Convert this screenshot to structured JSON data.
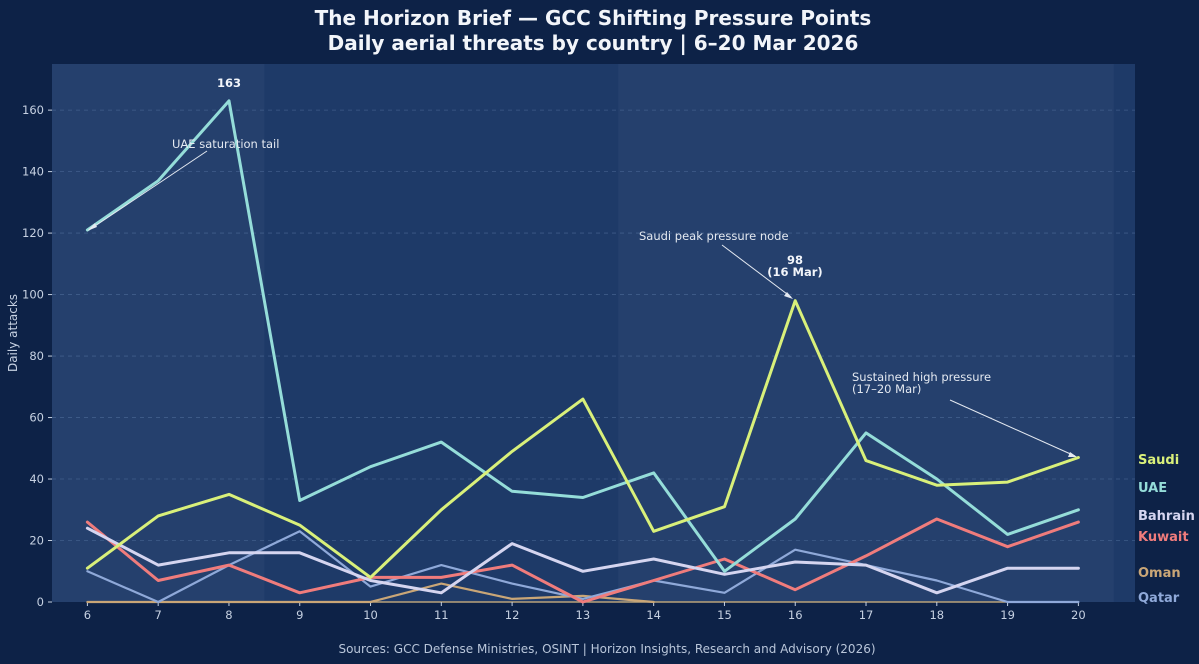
{
  "header": {
    "title_line1": "The Horizon Brief — GCC Shifting Pressure Points",
    "title_line2": "Daily aerial threats by country | 6–20 Mar 2026"
  },
  "footer": {
    "source": "Sources: GCC Defense Ministries, OSINT | Horizon Insights, Research and Advisory (2026)"
  },
  "chart_data": {
    "type": "line",
    "title": "The Horizon Brief — GCC Shifting Pressure Points",
    "subtitle": "Daily aerial threats by country | 6–20 Mar 2026",
    "xlabel": "",
    "ylabel": "Daily attacks",
    "x": [
      6,
      7,
      8,
      9,
      10,
      11,
      12,
      13,
      14,
      15,
      16,
      17,
      18,
      19,
      20
    ],
    "xlim": [
      5.5,
      20.8
    ],
    "ylim": [
      0,
      175
    ],
    "yticks": [
      0,
      20,
      40,
      60,
      80,
      100,
      120,
      140,
      160
    ],
    "grid": "horizontal-dashed",
    "legend_placement": "right",
    "shaded_bands": [
      [
        5.5,
        8.5
      ],
      [
        13.5,
        20.5
      ]
    ],
    "series": [
      {
        "name": "Saudi",
        "color": "#d9f07a",
        "values": [
          11,
          28,
          35,
          25,
          8,
          30,
          49,
          66,
          23,
          31,
          98,
          46,
          38,
          39,
          47
        ]
      },
      {
        "name": "UAE",
        "color": "#95ddd9",
        "values": [
          121,
          137,
          163,
          33,
          44,
          52,
          36,
          34,
          42,
          10,
          27,
          55,
          40,
          22,
          30
        ]
      },
      {
        "name": "Bahrain",
        "color": "#d5d5f0",
        "values": [
          24,
          12,
          16,
          16,
          7,
          3,
          19,
          10,
          14,
          9,
          13,
          12,
          3,
          11,
          11
        ]
      },
      {
        "name": "Kuwait",
        "color": "#f07c7c",
        "values": [
          26,
          7,
          12,
          3,
          8,
          8,
          12,
          0,
          7,
          14,
          4,
          15,
          27,
          18,
          26
        ]
      },
      {
        "name": "Oman",
        "color": "#c9a677",
        "values": [
          0,
          0,
          0,
          0,
          0,
          6,
          1,
          2,
          0,
          null,
          null,
          null,
          null,
          null,
          null
        ]
      },
      {
        "name": "Qatar",
        "color": "#8fa9d9",
        "values": [
          10,
          0,
          12,
          23,
          5,
          12,
          6,
          1,
          7,
          3,
          17,
          12,
          7,
          0,
          0
        ]
      }
    ],
    "annotations": [
      {
        "text": "163",
        "x": 8,
        "y": 163
      },
      {
        "text": "UAE saturation tail",
        "x": 6,
        "y": 121
      },
      {
        "text": "Saudi peak pressure node",
        "x": 16,
        "y": 98
      },
      {
        "text": "98",
        "x": 16,
        "y": 98
      },
      {
        "text": "(16 Mar)",
        "x": 16,
        "y": 98
      },
      {
        "text": "Sustained high pressure",
        "x": 20,
        "y": 47
      },
      {
        "text": "(17–20 Mar)",
        "x": 20,
        "y": 47
      }
    ]
  }
}
